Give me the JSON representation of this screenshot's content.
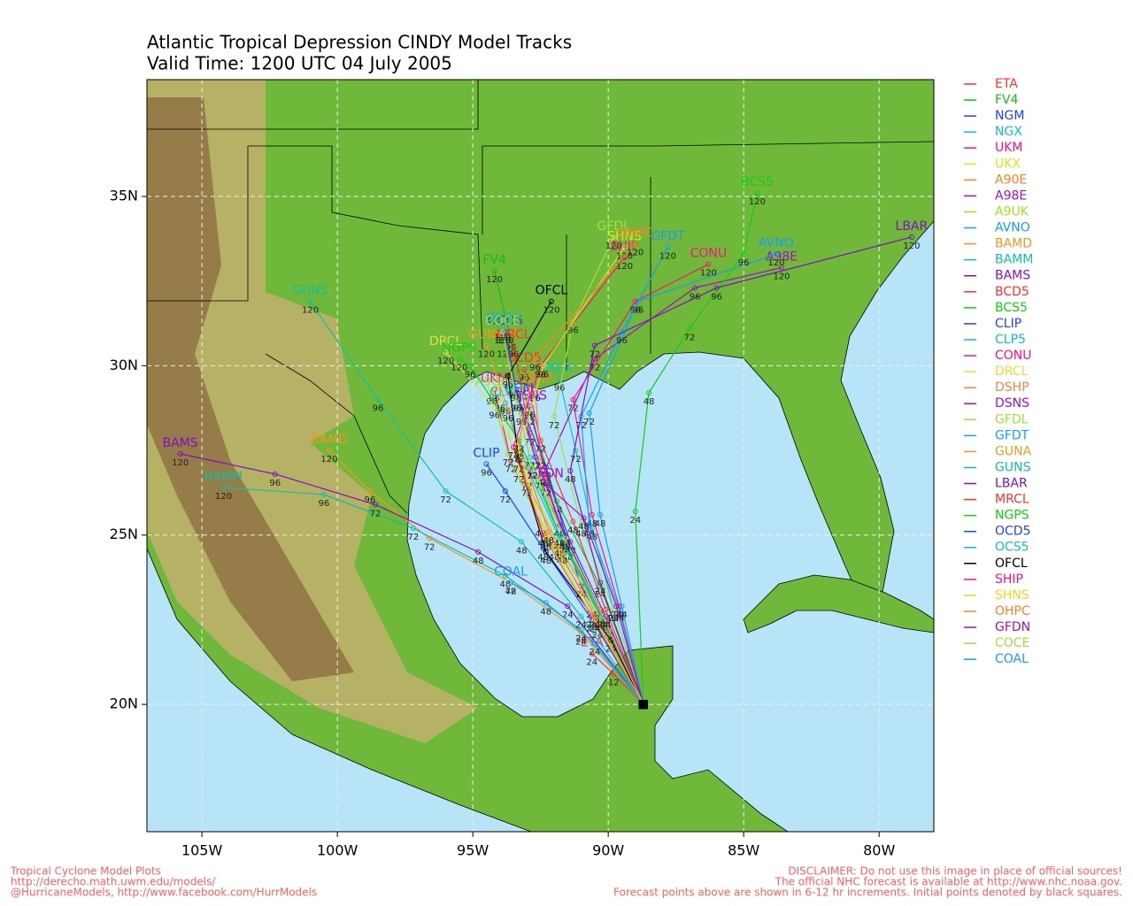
{
  "map": {
    "title": "Atlantic Tropical Depression CINDY Model Tracks",
    "subtitle": "Valid Time: 1200 UTC 04 July 2005",
    "xlim": [
      -107.03,
      -77.98
    ],
    "ylim": [
      16.24,
      38.45
    ],
    "xticks": [
      {
        "value": -105,
        "label": "105W"
      },
      {
        "value": -100,
        "label": "100W"
      },
      {
        "value": -95,
        "label": "95W"
      },
      {
        "value": -90,
        "label": "90W"
      },
      {
        "value": -85,
        "label": "85W"
      },
      {
        "value": -80,
        "label": "80W"
      }
    ],
    "yticks": [
      {
        "value": 20,
        "label": "20N"
      },
      {
        "value": 25,
        "label": "25N"
      },
      {
        "value": 30,
        "label": "30N"
      },
      {
        "value": 35,
        "label": "35N"
      }
    ],
    "grid": true,
    "models": [
      {
        "name": "ETA",
        "color": "#ff3030",
        "lon": [
          -88.7,
          -89.8,
          -90.6
        ],
        "lat": [
          20.0,
          20.9,
          21.5
        ],
        "hours": [
          null,
          12,
          24
        ]
      },
      {
        "name": "FV4",
        "color": "#10c010",
        "lon": [
          -88.7,
          -90.3,
          -91.9,
          -92.9,
          -93.6,
          -94.2
        ],
        "lat": [
          20.0,
          23.5,
          26.0,
          28.6,
          30.8,
          32.8
        ],
        "hours": [
          null,
          24,
          48,
          72,
          96,
          120
        ]
      },
      {
        "name": "NGM",
        "color": "#2040ff",
        "lon": [
          -88.7,
          -90.2,
          -91.5,
          -92.3,
          -93.3
        ],
        "lat": [
          20.0,
          22.6,
          24.8,
          27.0,
          29.0
        ],
        "hours": [
          null,
          24,
          48,
          72,
          96
        ]
      },
      {
        "name": "NGX",
        "color": "#10c0c0",
        "lon": [
          -88.7,
          -89.8,
          -90.6,
          -91.2,
          -91.8
        ],
        "lat": [
          20.0,
          22.8,
          25.2,
          27.5,
          29.6
        ],
        "hours": [
          null,
          24,
          48,
          72,
          96
        ]
      },
      {
        "name": "UKM",
        "color": "#ff1080",
        "lon": [
          -88.7,
          -90.6,
          -92.3,
          -93.6,
          -94.2
        ],
        "lat": [
          20.0,
          22.6,
          25.0,
          27.2,
          29.3
        ],
        "hours": [
          null,
          24,
          48,
          72,
          96
        ]
      },
      {
        "name": "UKX",
        "color": "#e0e020",
        "lon": [
          -88.7,
          -90.4,
          -92.0,
          -93.3,
          -94.0
        ],
        "lat": [
          20.0,
          22.3,
          24.6,
          26.9,
          29.0
        ],
        "hours": [
          null,
          24,
          48,
          72,
          96
        ]
      },
      {
        "name": "A90E",
        "color": "#ff8020",
        "lon": [
          -88.7,
          -90.0,
          -91.5,
          -92.5,
          -93.2,
          -93.8
        ],
        "lat": [
          20.0,
          22.3,
          24.6,
          26.7,
          28.6,
          30.6
        ],
        "hours": [
          null,
          24,
          48,
          72,
          96,
          120
        ]
      },
      {
        "name": "A98E",
        "color": "#a010c0",
        "lon": [
          -88.7,
          -91.0,
          -92.4,
          -90.5,
          -86.8,
          -83.6
        ],
        "lat": [
          20.0,
          23.5,
          26.8,
          30.2,
          32.3,
          32.9
        ],
        "hours": [
          null,
          24,
          48,
          72,
          96,
          120
        ]
      },
      {
        "name": "A9UK",
        "color": "#a0e020",
        "lon": [
          -88.7,
          -90.6,
          -92.5,
          -93.7,
          -94.3
        ],
        "lat": [
          20.0,
          22.9,
          25.3,
          27.4,
          29.2
        ],
        "hours": [
          null,
          24,
          48,
          72,
          96
        ]
      },
      {
        "name": "AVNO",
        "color": "#10a0ff",
        "lon": [
          -88.7,
          -89.5,
          -90.3,
          -90.7,
          -88.9,
          -83.8
        ],
        "lat": [
          20.0,
          22.9,
          25.6,
          28.6,
          31.9,
          33.3
        ],
        "hours": [
          null,
          24,
          48,
          72,
          96,
          120
        ]
      },
      {
        "name": "BAMD",
        "color": "#ff9020",
        "lon": [
          -88.7,
          -91.0,
          -93.6,
          -96.6,
          -98.8,
          -100.3
        ],
        "lat": [
          20.0,
          22.1,
          23.6,
          24.9,
          26.3,
          27.5
        ],
        "hours": [
          null,
          24,
          48,
          72,
          96,
          120
        ]
      },
      {
        "name": "BAMM",
        "color": "#10c0a0",
        "lon": [
          -88.7,
          -91.0,
          -93.8,
          -97.2,
          -100.5,
          -104.2
        ],
        "lat": [
          20.0,
          22.2,
          23.8,
          25.2,
          26.2,
          26.4
        ],
        "hours": [
          null,
          24,
          48,
          72,
          96,
          120
        ]
      },
      {
        "name": "BAMS",
        "color": "#8010c0",
        "lon": [
          -88.7,
          -91.5,
          -94.8,
          -98.6,
          -102.3,
          -105.8
        ],
        "lat": [
          20.0,
          22.9,
          24.5,
          25.9,
          26.8,
          27.4
        ],
        "hours": [
          null,
          24,
          48,
          72,
          96,
          120
        ]
      },
      {
        "name": "BCD5",
        "color": "#ff3030",
        "lon": [
          -88.7,
          -90.1,
          -91.3,
          -92.5,
          -93.1
        ],
        "lat": [
          20.0,
          22.8,
          25.4,
          27.8,
          29.9
        ],
        "hours": [
          null,
          24,
          48,
          72,
          96
        ]
      },
      {
        "name": "BCS5",
        "color": "#10d010",
        "lon": [
          -88.7,
          -89.0,
          -88.5,
          -87.0,
          -85.0,
          -84.5
        ],
        "lat": [
          20.0,
          25.7,
          29.2,
          31.1,
          33.3,
          35.1
        ],
        "hours": [
          null,
          24,
          48,
          72,
          96,
          120
        ]
      },
      {
        "name": "CLIP",
        "color": "#2040ff",
        "lon": [
          -88.7,
          -90.6,
          -92.4,
          -93.8,
          -94.5
        ],
        "lat": [
          20.0,
          22.5,
          24.6,
          26.3,
          27.1
        ],
        "hours": [
          null,
          24,
          48,
          72,
          96
        ]
      },
      {
        "name": "CLP5",
        "color": "#10c0c0",
        "lon": [
          -88.7,
          -90.3,
          -91.8,
          -93.0,
          -93.8
        ],
        "lat": [
          20.0,
          22.7,
          24.9,
          27.0,
          28.9
        ],
        "hours": [
          null,
          24,
          48,
          72,
          96
        ]
      },
      {
        "name": "CONU",
        "color": "#ff1080",
        "lon": [
          -88.7,
          -89.6,
          -90.6,
          -91.3,
          -89.0,
          -86.3
        ],
        "lat": [
          20.0,
          22.9,
          25.6,
          29.0,
          31.9,
          33.0
        ],
        "hours": [
          null,
          24,
          48,
          72,
          96,
          120
        ]
      },
      {
        "name": "DRCL",
        "color": "#e0e040",
        "lon": [
          -88.7,
          -90.3,
          -91.8,
          -93.0,
          -94.2,
          -96.0
        ],
        "lat": [
          20.0,
          22.6,
          24.7,
          26.7,
          28.8,
          30.4
        ],
        "hours": [
          null,
          24,
          48,
          72,
          96,
          120
        ]
      },
      {
        "name": "DSHP",
        "color": "#ff8040",
        "lon": [
          -88.7,
          -90.3,
          -91.8,
          -92.5,
          -92.7
        ],
        "lat": [
          20.0,
          22.8,
          25.3,
          27.3,
          29.3
        ],
        "hours": [
          null,
          24,
          48,
          72,
          96
        ]
      },
      {
        "name": "DSNS",
        "color": "#a010c0",
        "lon": [
          -88.7,
          -90.1,
          -91.4,
          -92.3,
          -92.9
        ],
        "lat": [
          20.0,
          22.6,
          24.8,
          26.8,
          28.8
        ],
        "hours": [
          null,
          24,
          48,
          72,
          96
        ]
      },
      {
        "name": "GFDL",
        "color": "#a0e040",
        "lon": [
          -88.7,
          -89.8,
          -91.0,
          -92.0,
          -91.3,
          -89.8
        ],
        "lat": [
          20.0,
          22.8,
          25.3,
          28.5,
          31.3,
          33.8
        ],
        "hours": [
          null,
          24,
          48,
          72,
          96,
          120
        ]
      },
      {
        "name": "GFDT",
        "color": "#10a0ff",
        "lon": [
          -88.7,
          -89.6,
          -90.7,
          -91.0,
          -89.5,
          -87.8
        ],
        "lat": [
          20.0,
          22.8,
          25.3,
          28.5,
          31.0,
          33.5
        ],
        "hours": [
          null,
          24,
          48,
          72,
          96,
          120
        ]
      },
      {
        "name": "GUNA",
        "color": "#e0a020",
        "lon": [
          -88.7,
          -90.2,
          -91.7,
          -93.0,
          -93.7,
          -94.5
        ],
        "lat": [
          20.0,
          22.5,
          24.5,
          26.5,
          28.7,
          30.6
        ],
        "hours": [
          null,
          24,
          48,
          72,
          96,
          120
        ]
      },
      {
        "name": "GUNS",
        "color": "#10c0a0",
        "lon": [
          -88.7,
          -91.0,
          -93.2,
          -96.0,
          -98.5,
          -101.0
        ],
        "lat": [
          20.0,
          22.6,
          24.8,
          26.3,
          29.0,
          31.9
        ],
        "hours": [
          null,
          24,
          48,
          72,
          96,
          120
        ]
      },
      {
        "name": "LBAR",
        "color": "#8010c0",
        "lon": [
          -88.7,
          -90.3,
          -91.4,
          -90.5,
          -86.0,
          -78.8
        ],
        "lat": [
          20.0,
          23.6,
          26.9,
          30.6,
          32.3,
          33.8
        ],
        "hours": [
          null,
          24,
          48,
          72,
          96,
          120
        ]
      },
      {
        "name": "MRCL",
        "color": "#ff3030",
        "lon": [
          -88.7,
          -90.3,
          -91.8,
          -92.9,
          -93.5
        ],
        "lat": [
          20.0,
          22.7,
          25.3,
          28.0,
          30.6
        ],
        "hours": [
          null,
          24,
          48,
          72,
          96
        ]
      },
      {
        "name": "NGPS",
        "color": "#10d010",
        "lon": [
          -88.7,
          -90.2,
          -91.8,
          -93.3,
          -95.1,
          -95.5
        ],
        "lat": [
          20.0,
          22.6,
          25.0,
          27.8,
          30.0,
          30.2
        ],
        "hours": [
          null,
          24,
          48,
          72,
          96,
          120
        ]
      },
      {
        "name": "OCD5",
        "color": "#2040ff",
        "lon": [
          -88.7,
          -90.2,
          -91.6,
          -92.7,
          -93.4,
          -93.8
        ],
        "lat": [
          20.0,
          22.6,
          25.0,
          27.3,
          29.3,
          31.0
        ],
        "hours": [
          null,
          24,
          48,
          72,
          96,
          120
        ]
      },
      {
        "name": "OCS5",
        "color": "#10c0c0",
        "lon": [
          -88.7,
          -90.3,
          -91.8,
          -92.9,
          -93.5,
          -93.9
        ],
        "lat": [
          20.0,
          22.6,
          25.0,
          27.3,
          29.4,
          31.1
        ],
        "hours": [
          null,
          24,
          48,
          72,
          96,
          120
        ]
      },
      {
        "name": "OFCL",
        "color": "#000000",
        "lon": [
          -88.7,
          -89.9,
          -92.3,
          -93.3,
          -93.7,
          -92.1
        ],
        "lat": [
          20.0,
          21.9,
          24.5,
          27.2,
          29.7,
          31.9
        ],
        "hours": [
          null,
          24,
          48,
          72,
          96,
          120
        ]
      },
      {
        "name": "SHIP",
        "color": "#ff1080",
        "lon": [
          -88.7,
          -90.6,
          -92.4,
          -93.5,
          -92.5,
          -89.4
        ],
        "lat": [
          20.0,
          22.6,
          25.0,
          27.6,
          30.0,
          33.2
        ],
        "hours": [
          null,
          24,
          48,
          72,
          96,
          120
        ]
      },
      {
        "name": "SHNS",
        "color": "#e0e020",
        "lon": [
          -88.7,
          -90.5,
          -92.3,
          -93.3,
          -92.4,
          -89.4
        ],
        "lat": [
          20.0,
          22.5,
          24.9,
          27.5,
          30.0,
          33.5
        ],
        "hours": [
          null,
          24,
          48,
          72,
          96,
          120
        ]
      },
      {
        "name": "OHPC",
        "color": "#ff8020",
        "lon": [
          -88.7,
          -90.5,
          -92.2,
          -93.3,
          -92.7,
          -89.0
        ],
        "lat": [
          20.0,
          22.6,
          25.1,
          27.7,
          30.2,
          33.6
        ],
        "hours": [
          null,
          24,
          48,
          72,
          96,
          120
        ]
      },
      {
        "name": "GFDN",
        "color": "#a010c0",
        "lon": [
          -88.7,
          -89.7,
          -90.9,
          -92.3
        ],
        "lat": [
          20.0,
          22.9,
          25.5,
          26.5
        ],
        "hours": [
          null,
          24,
          48,
          72
        ]
      },
      {
        "name": "COCE",
        "color": "#a0e040",
        "lon": [
          -88.7,
          -90.2,
          -91.6,
          -92.8,
          -93.4,
          -93.9
        ],
        "lat": [
          20.0,
          22.6,
          24.9,
          27.0,
          29.0,
          31.0
        ],
        "hours": [
          null,
          24,
          48,
          72,
          96,
          120
        ]
      },
      {
        "name": "COAL",
        "color": "#10a0ff",
        "lon": [
          -88.7,
          -90.5,
          -92.3,
          -93.6
        ],
        "lat": [
          20.0,
          21.8,
          23.0,
          23.6
        ],
        "hours": [
          null,
          24,
          48,
          72
        ]
      }
    ]
  },
  "footer": {
    "left": [
      "Tropical Cyclone Model Plots",
      "http://derecho.math.uwm.edu/models/",
      "@HurricaneModels, http://www.facebook.com/HurrModels"
    ],
    "right": [
      "DISCLAIMER: Do not use this image in place of official sources!",
      "The official NHC forecast is available at http://www.nhc.noaa.gov.",
      "Forecast points above are shown in 6-12 hr increments. Initial points denoted by black squares."
    ]
  }
}
